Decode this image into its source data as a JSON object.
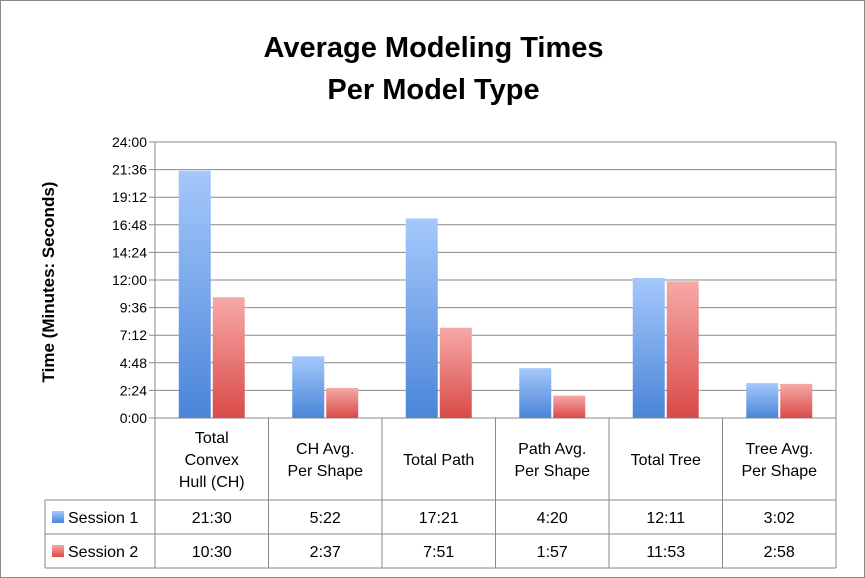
{
  "chart_data": {
    "type": "bar",
    "title_lines": [
      "Average Modeling Times",
      "Per Model Type"
    ],
    "ylabel": "Time (Minutes: Seconds)",
    "xlabel": "",
    "y_ticks": [
      "0:00",
      "2:24",
      "4:48",
      "7:12",
      "9:36",
      "12:00",
      "14:24",
      "16:48",
      "19:12",
      "21:36",
      "24:00"
    ],
    "ylim_seconds": [
      0,
      1440
    ],
    "grid": true,
    "legend": "data-table",
    "categories": [
      [
        "Total",
        "Convex",
        "Hull (CH)"
      ],
      [
        "CH Avg.",
        "Per Shape"
      ],
      [
        "Total Path"
      ],
      [
        "Path Avg.",
        "Per Shape"
      ],
      [
        "Total Tree"
      ],
      [
        "Tree Avg.",
        "Per Shape"
      ]
    ],
    "series": [
      {
        "name": "Session 1",
        "color_top": "#a5c8fb",
        "color_bottom": "#4a85d9",
        "labels": [
          "21:30",
          "5:22",
          "17:21",
          "4:20",
          "12:11",
          "3:02"
        ],
        "values_seconds": [
          1290,
          322,
          1041,
          260,
          731,
          182
        ]
      },
      {
        "name": "Session 2",
        "color_top": "#f6a9a7",
        "color_bottom": "#d94a48",
        "labels": [
          "10:30",
          "2:37",
          "7:51",
          "1:57",
          "11:53",
          "2:58"
        ],
        "values_seconds": [
          630,
          157,
          471,
          117,
          713,
          178
        ]
      }
    ]
  }
}
